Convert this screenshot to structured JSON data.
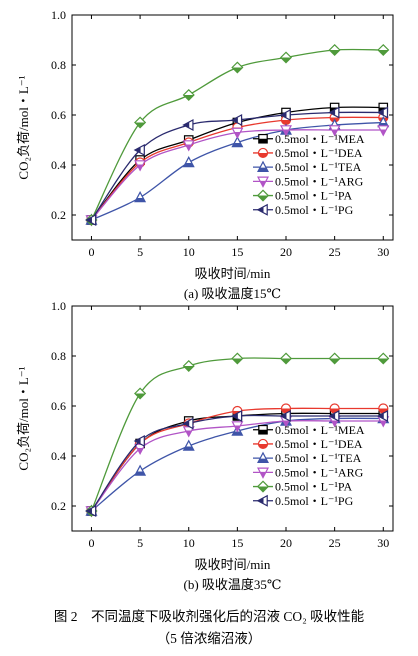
{
  "figure": {
    "caption_line1": "图 2　不同温度下吸收剂强化后的沼液 CO₂ 吸收性能",
    "caption_line2": "（5 倍浓缩沼液）"
  },
  "legend_colors": {
    "MEA": "#000000",
    "DEA": "#e8392e",
    "TEA": "#3f55a8",
    "ARG": "#b154c6",
    "PA": "#4f9a3b",
    "PG": "#2a2a6e"
  },
  "chart_data": [
    {
      "type": "line",
      "subtitle": "(a) 吸收温度15℃",
      "xlabel": "吸收时间/min",
      "ylabel": "CO₂负荷/mol・L⁻¹",
      "xlim": [
        -2,
        31
      ],
      "ylim": [
        0.1,
        1.0
      ],
      "xticks": [
        0,
        5,
        10,
        15,
        20,
        25,
        30
      ],
      "yticks": [
        0.2,
        0.4,
        0.6,
        0.8,
        1.0
      ],
      "ytick_labels": [
        "0.2",
        "0.4",
        "0.6",
        "0.8",
        "1.0"
      ],
      "legend_position": "bottom-right",
      "x": [
        0,
        5,
        10,
        15,
        20,
        25,
        30
      ],
      "series": [
        {
          "key": "MEA",
          "name": "0.5mol・L⁻¹MEA",
          "marker": "square",
          "values": [
            0.18,
            0.42,
            0.5,
            0.57,
            0.61,
            0.63,
            0.63
          ]
        },
        {
          "key": "DEA",
          "name": "0.5mol・L⁻¹DEA",
          "marker": "circle",
          "values": [
            0.18,
            0.41,
            0.49,
            0.55,
            0.58,
            0.59,
            0.59
          ]
        },
        {
          "key": "TEA",
          "name": "0.5mol・L⁻¹TEA",
          "marker": "triangle-up",
          "values": [
            0.18,
            0.27,
            0.41,
            0.49,
            0.54,
            0.56,
            0.57
          ]
        },
        {
          "key": "ARG",
          "name": "0.5mol・L⁻¹ARG",
          "marker": "triangle-down",
          "values": [
            0.18,
            0.4,
            0.48,
            0.53,
            0.54,
            0.54,
            0.54
          ]
        },
        {
          "key": "PA",
          "name": "0.5mol・L⁻¹PA",
          "marker": "diamond",
          "values": [
            0.18,
            0.57,
            0.68,
            0.79,
            0.83,
            0.86,
            0.86
          ]
        },
        {
          "key": "PG",
          "name": "0.5mol・L⁻¹PG",
          "marker": "triangle-left",
          "values": [
            0.18,
            0.46,
            0.56,
            0.58,
            0.6,
            0.61,
            0.61
          ]
        }
      ]
    },
    {
      "type": "line",
      "subtitle": "(b) 吸收温度35℃",
      "xlabel": "吸收时间/min",
      "ylabel": "CO₂负荷/mol・L⁻¹",
      "xlim": [
        -2,
        31
      ],
      "ylim": [
        0.1,
        1.0
      ],
      "xticks": [
        0,
        5,
        10,
        15,
        20,
        25,
        30
      ],
      "yticks": [
        0.2,
        0.4,
        0.6,
        0.8,
        1.0
      ],
      "ytick_labels": [
        "0.2",
        "0.4",
        "0.6",
        "0.8",
        "1.0"
      ],
      "legend_position": "bottom-right",
      "x": [
        0,
        5,
        10,
        15,
        20,
        25,
        30
      ],
      "series": [
        {
          "key": "MEA",
          "name": "0.5mol・L⁻¹MEA",
          "marker": "square",
          "values": [
            0.18,
            0.45,
            0.54,
            0.56,
            0.57,
            0.57,
            0.57
          ]
        },
        {
          "key": "DEA",
          "name": "0.5mol・L⁻¹DEA",
          "marker": "circle",
          "values": [
            0.18,
            0.45,
            0.53,
            0.58,
            0.59,
            0.59,
            0.59
          ]
        },
        {
          "key": "TEA",
          "name": "0.5mol・L⁻¹TEA",
          "marker": "triangle-up",
          "values": [
            0.18,
            0.34,
            0.44,
            0.5,
            0.54,
            0.55,
            0.55
          ]
        },
        {
          "key": "ARG",
          "name": "0.5mol・L⁻¹ARG",
          "marker": "triangle-down",
          "values": [
            0.18,
            0.43,
            0.5,
            0.52,
            0.54,
            0.54,
            0.54
          ]
        },
        {
          "key": "PA",
          "name": "0.5mol・L⁻¹PA",
          "marker": "diamond",
          "values": [
            0.18,
            0.65,
            0.76,
            0.79,
            0.79,
            0.79,
            0.79
          ]
        },
        {
          "key": "PG",
          "name": "0.5mol・L⁻¹PG",
          "marker": "triangle-left",
          "values": [
            0.18,
            0.46,
            0.53,
            0.56,
            0.56,
            0.56,
            0.56
          ]
        }
      ]
    }
  ]
}
